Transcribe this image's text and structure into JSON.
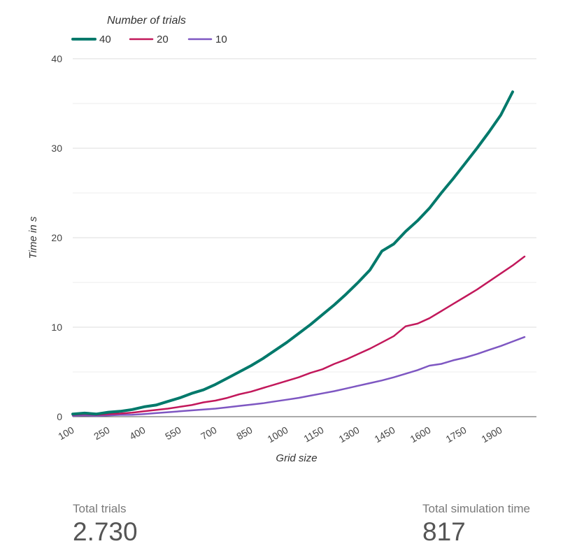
{
  "chart_data": {
    "type": "line",
    "legend_title": "Number of trials",
    "legend_position": "top-left",
    "xlabel": "Grid size",
    "ylabel": "Time in s",
    "ylim": [
      0,
      40
    ],
    "yticks": [
      0,
      10,
      20,
      30,
      40
    ],
    "xticks": [
      100,
      250,
      400,
      550,
      700,
      850,
      1000,
      1150,
      1300,
      1450,
      1600,
      1750,
      1900
    ],
    "xlim": [
      100,
      2050
    ],
    "grid": true,
    "x": [
      100,
      150,
      200,
      250,
      300,
      350,
      400,
      450,
      500,
      550,
      600,
      650,
      700,
      750,
      800,
      850,
      900,
      950,
      1000,
      1050,
      1100,
      1150,
      1200,
      1250,
      1300,
      1350,
      1400,
      1450,
      1500,
      1550,
      1600,
      1650,
      1700,
      1750,
      1800,
      1850,
      1900,
      1950,
      2000
    ],
    "series": [
      {
        "name": "40",
        "color": "#00796b",
        "values": [
          0.3,
          0.4,
          0.3,
          0.5,
          0.6,
          0.8,
          1.1,
          1.3,
          1.7,
          2.1,
          2.6,
          3.0,
          3.6,
          4.3,
          5.0,
          5.7,
          6.5,
          7.4,
          8.3,
          9.3,
          10.3,
          11.4,
          12.5,
          13.7,
          15.0,
          16.4,
          18.5,
          19.3,
          20.7,
          21.9,
          23.3,
          25.0,
          26.6,
          28.3,
          30.0,
          31.8,
          33.7,
          36.3,
          null
        ]
      },
      {
        "name": "20",
        "color": "#c2185b",
        "values": [
          0.2,
          0.3,
          0.2,
          0.3,
          0.35,
          0.45,
          0.6,
          0.75,
          0.9,
          1.1,
          1.3,
          1.6,
          1.8,
          2.1,
          2.5,
          2.8,
          3.2,
          3.6,
          4.0,
          4.4,
          4.9,
          5.3,
          5.9,
          6.4,
          7.0,
          7.6,
          8.3,
          9.0,
          10.1,
          10.4,
          11.0,
          11.8,
          12.6,
          13.4,
          14.2,
          15.1,
          16.0,
          16.9,
          17.9
        ]
      },
      {
        "name": "10",
        "color": "#7e57c2",
        "values": [
          0.1,
          0.15,
          0.1,
          0.15,
          0.2,
          0.22,
          0.3,
          0.4,
          0.5,
          0.6,
          0.7,
          0.8,
          0.9,
          1.05,
          1.2,
          1.35,
          1.5,
          1.7,
          1.9,
          2.1,
          2.35,
          2.6,
          2.85,
          3.15,
          3.45,
          3.75,
          4.05,
          4.4,
          4.8,
          5.2,
          5.7,
          5.9,
          6.3,
          6.6,
          7.0,
          7.45,
          7.9,
          8.4,
          8.9
        ]
      }
    ]
  },
  "scorecards": [
    {
      "label": "Total trials",
      "value": "2.730"
    },
    {
      "label": "Total simulation time",
      "value": "817"
    }
  ]
}
